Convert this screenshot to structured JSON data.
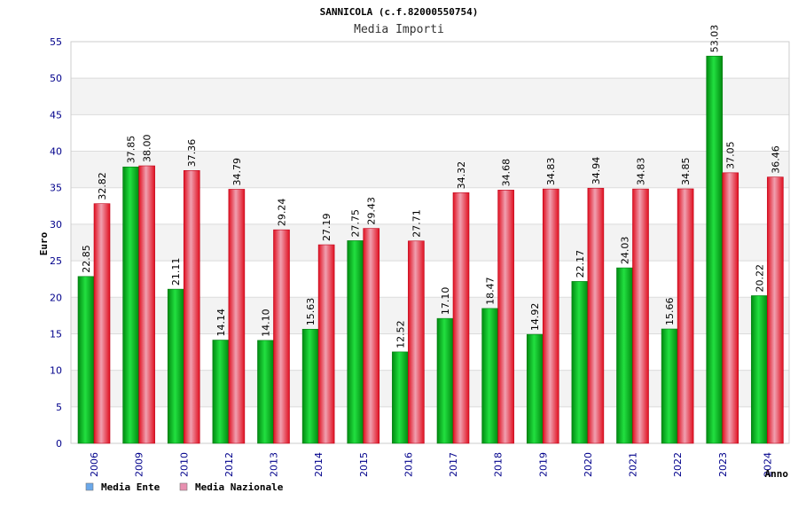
{
  "chart_data": {
    "type": "bar",
    "title": "SANNICOLA (c.f.82000550754)",
    "subtitle": "Media Importi",
    "xlabel": "Anno",
    "ylabel": "Euro",
    "ylim": [
      0,
      55
    ],
    "yticks": [
      0,
      5,
      10,
      15,
      20,
      25,
      30,
      35,
      40,
      45,
      50,
      55
    ],
    "grid": true,
    "legend_position": "bottom-left",
    "categories": [
      "2006",
      "2009",
      "2010",
      "2012",
      "2013",
      "2014",
      "2015",
      "2016",
      "2017",
      "2018",
      "2019",
      "2020",
      "2021",
      "2022",
      "2023",
      "2024"
    ],
    "series": [
      {
        "name": "Media Ente",
        "color": "#00b020",
        "legend_color": "#6aa8ea",
        "values": [
          22.85,
          37.85,
          21.11,
          14.14,
          14.1,
          15.63,
          27.75,
          12.52,
          17.1,
          18.47,
          14.92,
          22.17,
          24.03,
          15.66,
          53.03,
          20.22
        ],
        "labels": [
          "22.85",
          "37.85",
          "21.11",
          "14.14",
          "14.10",
          "15.63",
          "27.75",
          "12.52",
          "17.10",
          "18.47",
          "14.92",
          "22.17",
          "24.03",
          "15.66",
          "53.03",
          "20.22"
        ]
      },
      {
        "name": "Media Nazionale",
        "color": "#e8102a",
        "legend_color": "#e890b0",
        "values": [
          32.82,
          38.0,
          37.36,
          34.79,
          29.24,
          27.19,
          29.43,
          27.71,
          34.32,
          34.68,
          34.83,
          34.94,
          34.83,
          34.85,
          37.05,
          36.46
        ],
        "labels": [
          "32.82",
          "38.00",
          "37.36",
          "34.79",
          "29.24",
          "27.19",
          "29.43",
          "27.71",
          "34.32",
          "34.68",
          "34.83",
          "34.94",
          "34.83",
          "34.85",
          "37.05",
          "36.46"
        ]
      }
    ]
  }
}
